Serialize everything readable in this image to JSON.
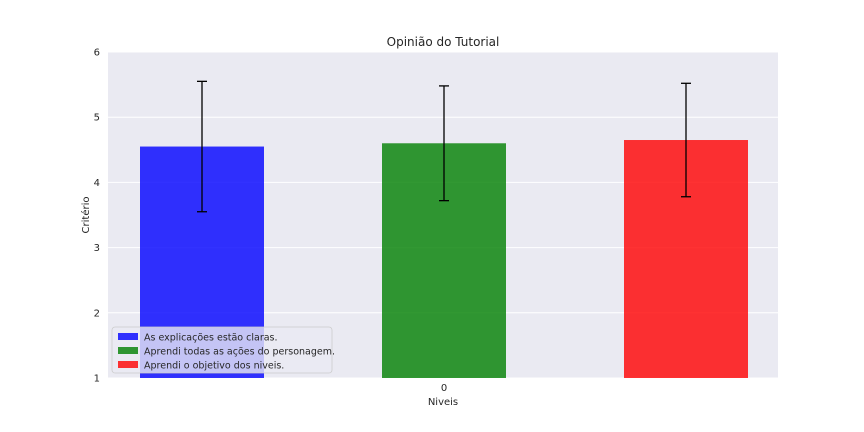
{
  "chart_data": {
    "type": "bar",
    "title": "Opinião do Tutorial",
    "xlabel": "Niveis",
    "ylabel": "Critério",
    "categories": [
      "0"
    ],
    "ylim": [
      1,
      6
    ],
    "yticks": [
      1,
      2,
      3,
      4,
      5,
      6
    ],
    "grid": true,
    "legend_position": "lower-left",
    "series": [
      {
        "name": "As explicações estão claras.",
        "color": "#0000ff",
        "values": [
          4.55
        ],
        "error": [
          1.0
        ]
      },
      {
        "name": "Aprendi todas as ações do personagem.",
        "color": "#008000",
        "values": [
          4.6
        ],
        "error": [
          0.88
        ]
      },
      {
        "name": "Aprendi o objetivo dos niveis.",
        "color": "#ff0000",
        "values": [
          4.65
        ],
        "error": [
          0.87
        ]
      }
    ]
  }
}
